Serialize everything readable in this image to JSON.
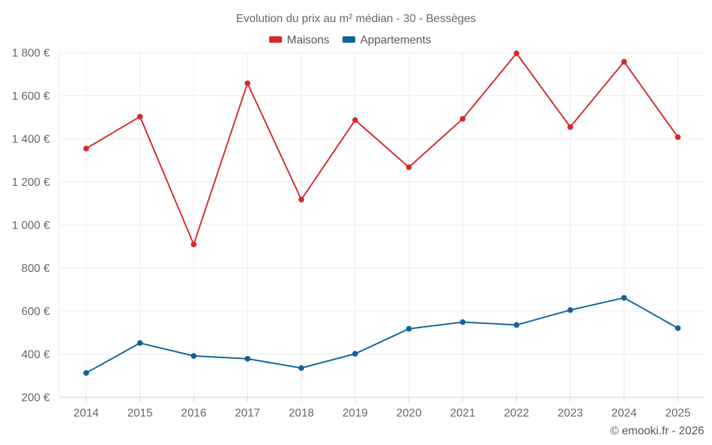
{
  "colors": {
    "maisons": "#d42a2a",
    "appartements": "#0f6499",
    "grid": "#ececec",
    "axis": "#cfcfcf",
    "text": "#666666"
  },
  "chart_data": {
    "type": "line",
    "title": "Evolution du prix au m² médian - 30 - Bessèges",
    "categories": [
      "2014",
      "2015",
      "2016",
      "2017",
      "2018",
      "2019",
      "2020",
      "2021",
      "2022",
      "2023",
      "2024",
      "2025"
    ],
    "series": [
      {
        "name": "Maisons",
        "color": "#d42a2a",
        "values": [
          1355,
          1503,
          910,
          1658,
          1118,
          1487,
          1268,
          1493,
          1797,
          1455,
          1758,
          1408
        ]
      },
      {
        "name": "Appartements",
        "color": "#0f6499",
        "values": [
          313,
          452,
          392,
          379,
          336,
          402,
          518,
          549,
          536,
          605,
          662,
          521
        ]
      }
    ],
    "y_ticks": [
      {
        "value": 200,
        "label": "200 €"
      },
      {
        "value": 400,
        "label": "400 €"
      },
      {
        "value": 600,
        "label": "600 €"
      },
      {
        "value": 800,
        "label": "800 €"
      },
      {
        "value": 1000,
        "label": "1 000 €"
      },
      {
        "value": 1200,
        "label": "1 200 €"
      },
      {
        "value": 1400,
        "label": "1 400 €"
      },
      {
        "value": 1600,
        "label": "1 600 €"
      },
      {
        "value": 1800,
        "label": "1 800 €"
      }
    ],
    "ylim": [
      200,
      1800
    ],
    "xlabel": "",
    "ylabel": "",
    "grid": true,
    "legend_position": "top-center"
  },
  "credit": "© emooki.fr - 2026"
}
